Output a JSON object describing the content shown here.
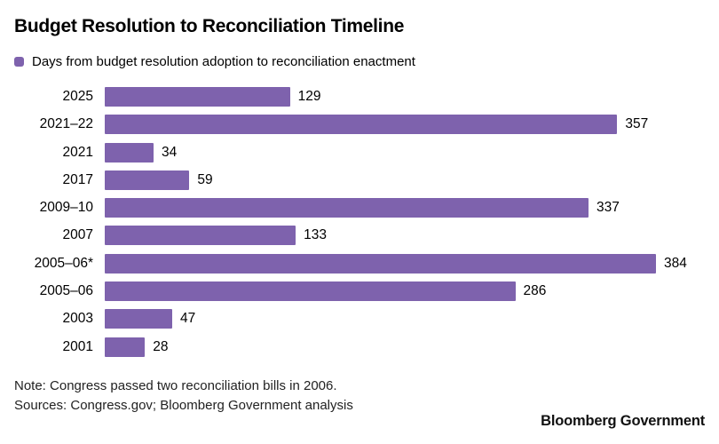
{
  "title": "Budget Resolution to Reconciliation Timeline",
  "legend": {
    "label": "Days from budget resolution adoption to reconciliation enactment",
    "swatch_color": "#7e62ad"
  },
  "chart_data": {
    "type": "bar",
    "orientation": "horizontal",
    "title": "Budget Resolution to Reconciliation Timeline",
    "series_label": "Days from budget resolution adoption to reconciliation enactment",
    "categories": [
      "2025",
      "2021–22",
      "2021",
      "2017",
      "2009–10",
      "2007",
      "2005–06*",
      "2005–06",
      "2003",
      "2001"
    ],
    "values": [
      129,
      357,
      34,
      59,
      337,
      133,
      384,
      286,
      47,
      28
    ],
    "xlim": [
      0,
      384
    ],
    "grid": "off",
    "legend_position": "top-left",
    "bar_color": "#7e62ad",
    "data_labels": "outside-end"
  },
  "footer": {
    "note": "Note: Congress passed two reconciliation bills in 2006.",
    "sources": "Sources: Congress.gov; Bloomberg Government analysis",
    "brand": "Bloomberg Government"
  }
}
